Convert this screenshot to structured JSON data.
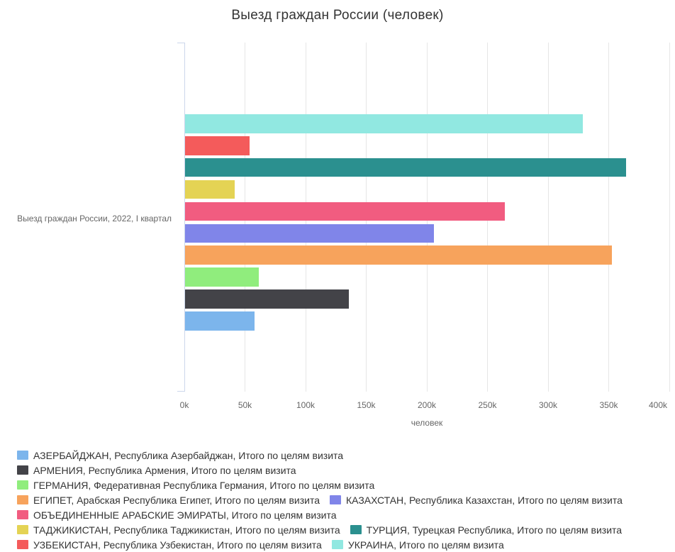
{
  "chart_data": {
    "type": "bar",
    "title": "Выезд граждан России (человек)",
    "category_label": "Выезд граждан России, 2022, I квартал",
    "xlabel": "человек",
    "value_axis": {
      "min": 0,
      "max": 400000,
      "tick_interval": 50000,
      "ticks": [
        "0k",
        "50k",
        "100k",
        "150k",
        "200k",
        "250k",
        "300k",
        "350k",
        "400k"
      ]
    },
    "grid": "on",
    "legend_position": "bottom-left",
    "bar_display_order": "reversed (last series on top row is УКРАИНА, bottom row is АЗЕРБАЙДЖАН)",
    "series": [
      {
        "name": "АЗЕРБАЙДЖАН, Республика Азербайджан, Итого по целям визита",
        "color": "#7cb5ec",
        "value": 57500
      },
      {
        "name": "АРМЕНИЯ, Республика Армения, Итого по целям визита",
        "color": "#434348",
        "value": 135000
      },
      {
        "name": "ГЕРМАНИЯ, Федеративная Республика Германия, Итого по целям визита",
        "color": "#90ed7d",
        "value": 61000
      },
      {
        "name": "ЕГИПЕТ, Арабская Республика Египет, Итого по целям визита",
        "color": "#f7a35c",
        "value": 352000
      },
      {
        "name": "КАЗАХСТАН, Республика Казахстан, Итого по целям визита",
        "color": "#8085e9",
        "value": 205000
      },
      {
        "name": "ОБЪЕДИНЕННЫЕ АРАБСКИЕ ЭМИРАТЫ, Итого по целям визита",
        "color": "#f15c80",
        "value": 264000
      },
      {
        "name": "ТАДЖИКИСТАН, Республика Таджикистан, Итого по целям визита",
        "color": "#e4d354",
        "value": 41000
      },
      {
        "name": "ТУРЦИЯ, Турецкая Республика, Итого по целям визита",
        "color": "#2b908f",
        "value": 363500
      },
      {
        "name": "УЗБЕКИСТАН, Республика Узбекистан, Итого по целям визита",
        "color": "#f45b5b",
        "value": 53500
      },
      {
        "name": "УКРАИНА, Итого по целям визита",
        "color": "#91e8e1",
        "value": 328000
      }
    ],
    "legend_rows": [
      [
        0
      ],
      [
        1
      ],
      [
        2
      ],
      [
        3,
        4
      ],
      [
        5
      ],
      [
        6,
        7
      ],
      [
        8,
        9
      ]
    ],
    "colors": {
      "axis_line": "#ccd6eb",
      "gridline": "#e6e6e6",
      "title_text": "#333333",
      "tick_text": "#666666",
      "legend_text": "#333333",
      "background": "#ffffff"
    }
  }
}
